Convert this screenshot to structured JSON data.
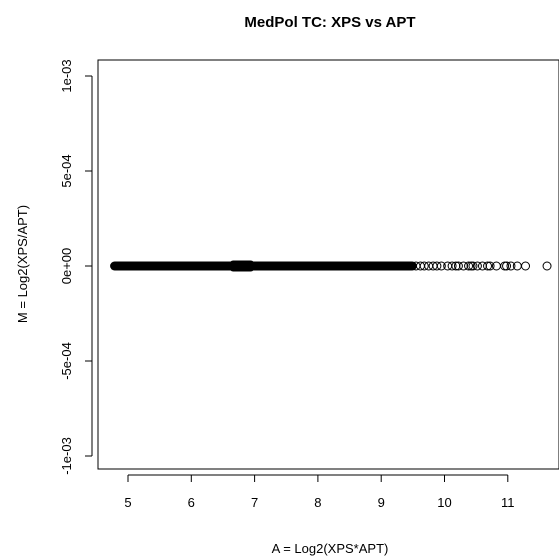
{
  "chart_data": {
    "type": "scatter",
    "title": "MedPol TC: XPS vs APT",
    "xlabel": "A = Log2(XPS*APT)",
    "ylabel": "M = Log2(XPS/APT)",
    "xlim": [
      4.6,
      11.7
    ],
    "ylim": [
      -0.001,
      0.001
    ],
    "x_ticks": [
      5,
      6,
      7,
      8,
      9,
      10,
      11
    ],
    "x_tick_labels": [
      "5",
      "6",
      "7",
      "8",
      "9",
      "10",
      "11"
    ],
    "y_ticks": [
      -0.001,
      -0.0005,
      0,
      0.0005,
      0.001
    ],
    "y_tick_labels": [
      "-1e-03",
      "-5e-04",
      "0e+00",
      "5e-04",
      "1e-03"
    ],
    "grid": false,
    "marker": "open-circle",
    "marker_color": "#000000",
    "points": {
      "y": 0,
      "dense_x_range": [
        4.78,
        9.5
      ],
      "sparse_x": [
        9.55,
        9.62,
        9.68,
        9.75,
        9.82,
        9.88,
        9.95,
        10.05,
        10.12,
        10.18,
        10.22,
        10.3,
        10.38,
        10.42,
        10.45,
        10.52,
        10.6,
        10.68,
        10.72,
        10.82,
        10.95,
        10.98,
        11.05,
        11.15,
        11.28,
        11.62
      ]
    }
  }
}
